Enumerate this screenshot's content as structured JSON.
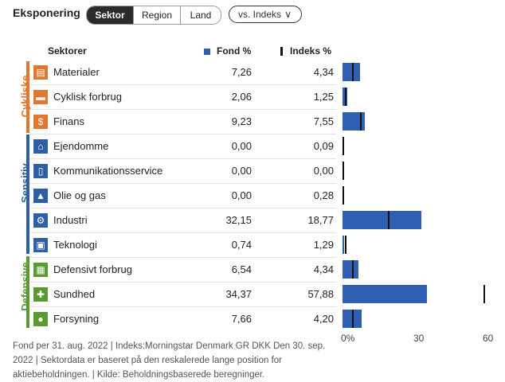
{
  "header": {
    "title": "Eksponering",
    "tabs": [
      {
        "label": "Sektor",
        "active": true
      },
      {
        "label": "Region",
        "active": false
      },
      {
        "label": "Land",
        "active": false
      }
    ],
    "compare_label": "vs. Indeks",
    "compare_chevron": "∨"
  },
  "columns": {
    "sector": "Sektorer",
    "fund": "Fond  %",
    "index": "Indeks  %"
  },
  "groups": [
    {
      "label": "Cykliske",
      "color": "#e0782f"
    },
    {
      "label": "Sensitiv",
      "color": "#2e5ea4"
    },
    {
      "label": "Defensive",
      "color": "#5a9a32"
    }
  ],
  "rows": [
    {
      "name": "Materialer",
      "fund": "7,26",
      "index": "4,34",
      "icon": "materials-icon",
      "glyph": "▤"
    },
    {
      "name": "Cyklisk forbrug",
      "fund": "2,06",
      "index": "1,25",
      "icon": "car-icon",
      "glyph": "▬"
    },
    {
      "name": "Finans",
      "fund": "9,23",
      "index": "7,55",
      "icon": "finance-icon",
      "glyph": "$"
    },
    {
      "name": "Ejendomme",
      "fund": "0,00",
      "index": "0,09",
      "icon": "house-icon",
      "glyph": "⌂"
    },
    {
      "name": "Kommunikationsservice",
      "fund": "0,00",
      "index": "0,00",
      "icon": "phone-icon",
      "glyph": "▯"
    },
    {
      "name": "Olie og gas",
      "fund": "0,00",
      "index": "0,28",
      "icon": "flame-icon",
      "glyph": "▲"
    },
    {
      "name": "Industri",
      "fund": "32,15",
      "index": "18,77",
      "icon": "gear-icon",
      "glyph": "⚙"
    },
    {
      "name": "Teknologi",
      "fund": "0,74",
      "index": "1,29",
      "icon": "computer-icon",
      "glyph": "▣"
    },
    {
      "name": "Defensivt forbrug",
      "fund": "6,54",
      "index": "4,34",
      "icon": "cart-icon",
      "glyph": "▦"
    },
    {
      "name": "Sundhed",
      "fund": "34,37",
      "index": "57,88",
      "icon": "health-cross-icon",
      "glyph": "✚"
    },
    {
      "name": "Forsyning",
      "fund": "7,66",
      "index": "4,20",
      "icon": "bulb-icon",
      "glyph": "●"
    }
  ],
  "chart_data": {
    "type": "bar",
    "categories": [
      "Materialer",
      "Cyklisk forbrug",
      "Finans",
      "Ejendomme",
      "Kommunikationsservice",
      "Olie og gas",
      "Industri",
      "Teknologi",
      "Defensivt forbrug",
      "Sundhed",
      "Forsyning"
    ],
    "series": [
      {
        "name": "Fond  %",
        "values": [
          7.26,
          2.06,
          9.23,
          0.0,
          0.0,
          0.0,
          32.15,
          0.74,
          6.54,
          34.37,
          7.66
        ]
      },
      {
        "name": "Indeks  %",
        "values": [
          4.34,
          1.25,
          7.55,
          0.09,
          0.0,
          0.28,
          18.77,
          1.29,
          4.34,
          57.88,
          4.2
        ]
      }
    ],
    "xlim": [
      0,
      60
    ],
    "ticks": [
      "0%",
      "30",
      "60"
    ],
    "colors": {
      "fund": "#2f5fb3",
      "index": "#111111"
    }
  },
  "footnote": "Fond per 31. aug. 2022 | Indeks:Morningstar Denmark GR DKK Den 30. sep. 2022 | Sektordata er baseret på den reskalerede lange position for aktiebeholdningen. | Kilde: Beholdningsbaserede beregninger."
}
